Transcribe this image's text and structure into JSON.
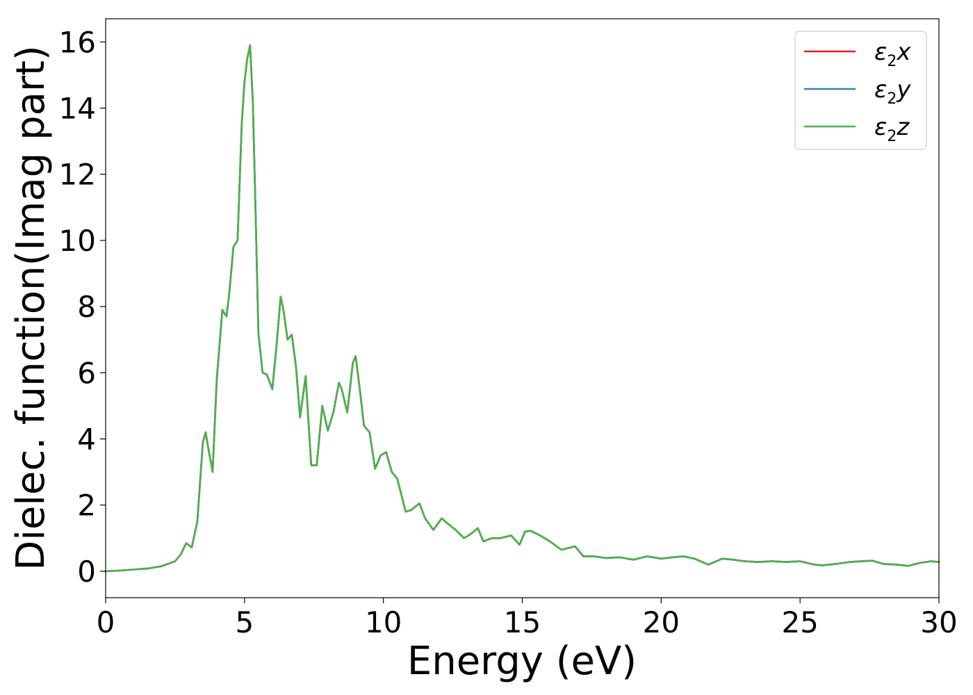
{
  "chart_data": {
    "type": "line",
    "title": "",
    "xlabel": "Energy (eV)",
    "ylabel": "Dielec. function(Imag part)",
    "xlim": [
      0,
      30
    ],
    "ylim": [
      -0.8,
      16.7
    ],
    "xticks": [
      0,
      5,
      10,
      15,
      20,
      25,
      30
    ],
    "xtick_labels": [
      "0",
      "5",
      "10",
      "15",
      "20",
      "25",
      "30"
    ],
    "yticks": [
      0,
      2,
      4,
      6,
      8,
      10,
      12,
      14,
      16
    ],
    "ytick_labels": [
      "0",
      "2",
      "4",
      "6",
      "8",
      "10",
      "12",
      "14",
      "16"
    ],
    "grid": false,
    "legend_position": "top-right",
    "x": [
      0,
      0.5,
      1.0,
      1.5,
      2.0,
      2.5,
      2.7,
      2.9,
      3.1,
      3.3,
      3.5,
      3.6,
      3.7,
      3.85,
      4.0,
      4.2,
      4.35,
      4.45,
      4.6,
      4.75,
      4.9,
      5.0,
      5.1,
      5.2,
      5.3,
      5.4,
      5.5,
      5.65,
      5.8,
      6.0,
      6.15,
      6.3,
      6.4,
      6.55,
      6.7,
      6.85,
      7.0,
      7.2,
      7.4,
      7.6,
      7.8,
      8.0,
      8.2,
      8.4,
      8.5,
      8.7,
      8.9,
      9.0,
      9.15,
      9.3,
      9.5,
      9.7,
      9.9,
      10.1,
      10.3,
      10.5,
      10.8,
      11.0,
      11.3,
      11.5,
      11.8,
      12.1,
      12.3,
      12.6,
      12.9,
      13.1,
      13.4,
      13.6,
      13.9,
      14.2,
      14.6,
      14.9,
      15.1,
      15.3,
      15.6,
      16.0,
      16.4,
      16.9,
      17.2,
      17.6,
      18.0,
      18.5,
      19.0,
      19.5,
      20.0,
      20.4,
      20.8,
      21.2,
      21.7,
      22.2,
      22.6,
      23.0,
      23.5,
      24.0,
      24.5,
      25.0,
      25.5,
      25.8,
      26.3,
      26.8,
      27.2,
      27.6,
      28.0,
      28.5,
      28.9,
      29.3,
      29.7,
      30.0
    ],
    "series": [
      {
        "name": "ε2x",
        "color": "#e41a1c",
        "values": [
          0.0,
          0.02,
          0.05,
          0.08,
          0.15,
          0.3,
          0.5,
          0.85,
          0.72,
          1.5,
          3.9,
          4.2,
          3.7,
          3.0,
          5.8,
          7.9,
          7.7,
          8.4,
          9.8,
          10.0,
          13.5,
          14.8,
          15.5,
          15.9,
          14.2,
          10.8,
          7.2,
          6.0,
          5.95,
          5.5,
          6.8,
          8.3,
          7.9,
          7.0,
          7.15,
          6.2,
          4.65,
          5.9,
          3.2,
          3.2,
          5.0,
          4.25,
          4.8,
          5.7,
          5.5,
          4.8,
          6.3,
          6.5,
          5.5,
          4.4,
          4.2,
          3.1,
          3.5,
          3.6,
          3.0,
          2.8,
          1.8,
          1.85,
          2.05,
          1.6,
          1.25,
          1.6,
          1.45,
          1.25,
          1.0,
          1.1,
          1.3,
          0.9,
          1.0,
          1.0,
          1.08,
          0.8,
          1.2,
          1.22,
          1.1,
          0.9,
          0.65,
          0.75,
          0.45,
          0.45,
          0.4,
          0.42,
          0.35,
          0.45,
          0.38,
          0.42,
          0.45,
          0.38,
          0.2,
          0.38,
          0.35,
          0.3,
          0.28,
          0.3,
          0.28,
          0.3,
          0.2,
          0.18,
          0.22,
          0.28,
          0.3,
          0.32,
          0.22,
          0.2,
          0.16,
          0.25,
          0.3,
          0.28
        ]
      },
      {
        "name": "ε2y",
        "color": "#377eb8",
        "values": [
          0.0,
          0.02,
          0.05,
          0.08,
          0.15,
          0.3,
          0.5,
          0.85,
          0.72,
          1.5,
          3.9,
          4.2,
          3.7,
          3.0,
          5.8,
          7.9,
          7.7,
          8.4,
          9.8,
          10.0,
          13.5,
          14.8,
          15.5,
          15.9,
          14.2,
          10.8,
          7.2,
          6.0,
          5.95,
          5.5,
          6.8,
          8.3,
          7.9,
          7.0,
          7.15,
          6.2,
          4.65,
          5.9,
          3.2,
          3.2,
          5.0,
          4.25,
          4.8,
          5.7,
          5.5,
          4.8,
          6.3,
          6.5,
          5.5,
          4.4,
          4.2,
          3.1,
          3.5,
          3.6,
          3.0,
          2.8,
          1.8,
          1.85,
          2.05,
          1.6,
          1.25,
          1.6,
          1.45,
          1.25,
          1.0,
          1.1,
          1.3,
          0.9,
          1.0,
          1.0,
          1.08,
          0.8,
          1.2,
          1.22,
          1.1,
          0.9,
          0.65,
          0.75,
          0.45,
          0.45,
          0.4,
          0.42,
          0.35,
          0.45,
          0.38,
          0.42,
          0.45,
          0.38,
          0.2,
          0.38,
          0.35,
          0.3,
          0.28,
          0.3,
          0.28,
          0.3,
          0.2,
          0.18,
          0.22,
          0.28,
          0.3,
          0.32,
          0.22,
          0.2,
          0.16,
          0.25,
          0.3,
          0.28
        ]
      },
      {
        "name": "ε2z",
        "color": "#4daf4a",
        "values": [
          0.0,
          0.02,
          0.05,
          0.08,
          0.15,
          0.3,
          0.5,
          0.85,
          0.72,
          1.5,
          3.9,
          4.2,
          3.7,
          3.0,
          5.8,
          7.9,
          7.7,
          8.4,
          9.8,
          10.0,
          13.5,
          14.8,
          15.5,
          15.9,
          14.2,
          10.8,
          7.2,
          6.0,
          5.95,
          5.5,
          6.8,
          8.3,
          7.9,
          7.0,
          7.15,
          6.2,
          4.65,
          5.9,
          3.2,
          3.2,
          5.0,
          4.25,
          4.8,
          5.7,
          5.5,
          4.8,
          6.3,
          6.5,
          5.5,
          4.4,
          4.2,
          3.1,
          3.5,
          3.6,
          3.0,
          2.8,
          1.8,
          1.85,
          2.05,
          1.6,
          1.25,
          1.6,
          1.45,
          1.25,
          1.0,
          1.1,
          1.3,
          0.9,
          1.0,
          1.0,
          1.08,
          0.8,
          1.2,
          1.22,
          1.1,
          0.9,
          0.65,
          0.75,
          0.45,
          0.45,
          0.4,
          0.42,
          0.35,
          0.45,
          0.38,
          0.42,
          0.45,
          0.38,
          0.2,
          0.38,
          0.35,
          0.3,
          0.28,
          0.3,
          0.28,
          0.3,
          0.2,
          0.18,
          0.22,
          0.28,
          0.3,
          0.32,
          0.22,
          0.2,
          0.16,
          0.25,
          0.3,
          0.28
        ]
      }
    ],
    "legend": [
      {
        "base": "ε",
        "sub": "2",
        "axis": "x"
      },
      {
        "base": "ε",
        "sub": "2",
        "axis": "y"
      },
      {
        "base": "ε",
        "sub": "2",
        "axis": "z"
      }
    ]
  }
}
